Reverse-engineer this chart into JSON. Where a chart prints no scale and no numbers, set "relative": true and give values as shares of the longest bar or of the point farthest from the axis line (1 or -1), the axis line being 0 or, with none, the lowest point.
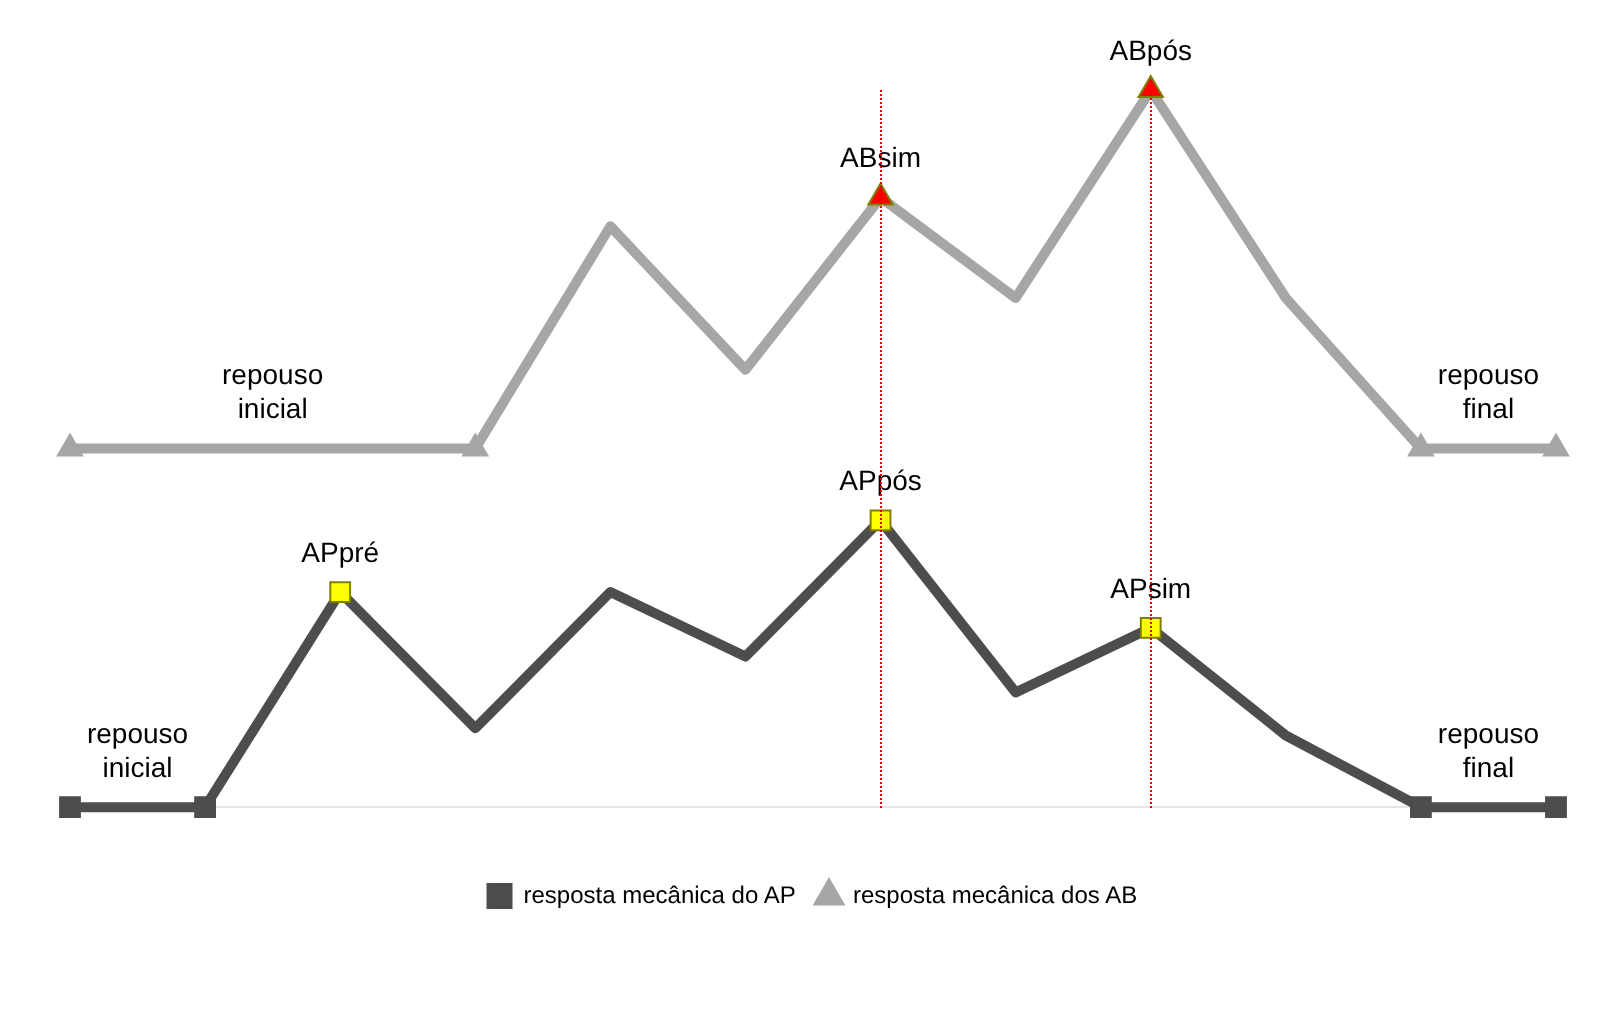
{
  "chart_data": {
    "type": "line",
    "relative": true,
    "categories": [
      null,
      null,
      null,
      null,
      null,
      null,
      null,
      null,
      null,
      null,
      null,
      null
    ],
    "series": [
      {
        "name": "resposta mecânica do AP",
        "color": "#4d4d4d",
        "marker": "square",
        "colors": [
          "#4d4d4d",
          "#4d4d4d",
          "#ffff00",
          null,
          null,
          null,
          "#ffff00",
          null,
          "#ffff00",
          null,
          "#4d4d4d",
          "#4d4d4d"
        ],
        "values": [
          0,
          0,
          0.3,
          0.11,
          0.3,
          0.21,
          0.4,
          0.16,
          0.25,
          0.1,
          0,
          0
        ]
      },
      {
        "name": "resposta mecânica dos AB",
        "color": "#a6a6a6",
        "marker": "triangle",
        "colors": [
          "#a6a6a6",
          null,
          null,
          "#a6a6a6",
          null,
          null,
          "#ff0000",
          null,
          "#ff0000",
          null,
          "#a6a6a6",
          "#a6a6a6"
        ],
        "values": [
          0.5,
          0.5,
          0.5,
          0.5,
          0.81,
          0.61,
          0.85,
          0.71,
          1,
          0.71,
          0.5,
          0.5
        ]
      }
    ],
    "annotations": [
      "repouso inicial",
      "ABsim",
      "ABpós",
      "repouso final",
      "repouso inicial",
      "APpré",
      "APpós",
      "APsim",
      "repouso final"
    ],
    "legend": "bottom"
  }
}
